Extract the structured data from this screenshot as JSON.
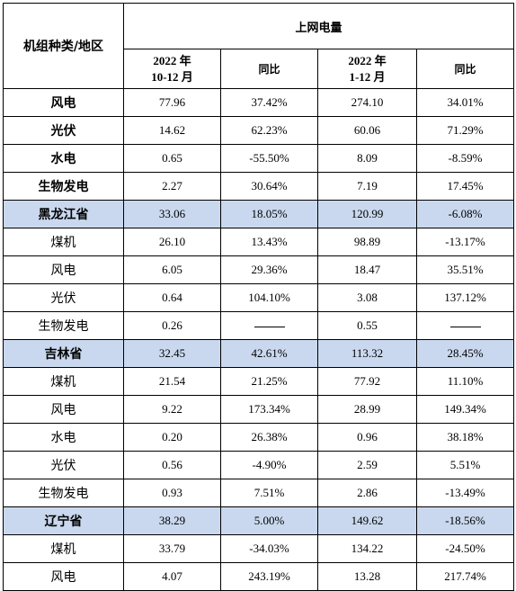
{
  "header": {
    "category": "机组种类/地区",
    "group": "上网电量",
    "col1": {
      "year": "2022 年",
      "period": "10-12 月"
    },
    "col2": "同比",
    "col3": {
      "year": "2022 年",
      "period": "1-12 月"
    },
    "col4": "同比"
  },
  "rows": [
    {
      "label": "风电",
      "v1": "77.96",
      "v2": "37.42%",
      "v3": "274.10",
      "v4": "34.01%",
      "kind": "bold"
    },
    {
      "label": "光伏",
      "v1": "14.62",
      "v2": "62.23%",
      "v3": "60.06",
      "v4": "71.29%",
      "kind": "bold"
    },
    {
      "label": "水电",
      "v1": "0.65",
      "v2": "-55.50%",
      "v3": "8.09",
      "v4": "-8.59%",
      "kind": "bold"
    },
    {
      "label": "生物发电",
      "v1": "2.27",
      "v2": "30.64%",
      "v3": "7.19",
      "v4": "17.45%",
      "kind": "bold"
    },
    {
      "label": "黑龙江省",
      "v1": "33.06",
      "v2": "18.05%",
      "v3": "120.99",
      "v4": "-6.08%",
      "kind": "region"
    },
    {
      "label": "煤机",
      "v1": "26.10",
      "v2": "13.43%",
      "v3": "98.89",
      "v4": "-13.17%",
      "kind": "normal"
    },
    {
      "label": "风电",
      "v1": "6.05",
      "v2": "29.36%",
      "v3": "18.47",
      "v4": "35.51%",
      "kind": "normal"
    },
    {
      "label": "光伏",
      "v1": "0.64",
      "v2": "104.10%",
      "v3": "3.08",
      "v4": "137.12%",
      "kind": "normal"
    },
    {
      "label": "生物发电",
      "v1": "0.26",
      "v2": "",
      "v3": "0.55",
      "v4": "",
      "kind": "normal"
    },
    {
      "label": "吉林省",
      "v1": "32.45",
      "v2": "42.61%",
      "v3": "113.32",
      "v4": "28.45%",
      "kind": "region"
    },
    {
      "label": "煤机",
      "v1": "21.54",
      "v2": "21.25%",
      "v3": "77.92",
      "v4": "11.10%",
      "kind": "normal"
    },
    {
      "label": "风电",
      "v1": "9.22",
      "v2": "173.34%",
      "v3": "28.99",
      "v4": "149.34%",
      "kind": "normal"
    },
    {
      "label": "水电",
      "v1": "0.20",
      "v2": "26.38%",
      "v3": "0.96",
      "v4": "38.18%",
      "kind": "normal"
    },
    {
      "label": "光伏",
      "v1": "0.56",
      "v2": "-4.90%",
      "v3": "2.59",
      "v4": "5.51%",
      "kind": "normal"
    },
    {
      "label": "生物发电",
      "v1": "0.93",
      "v2": "7.51%",
      "v3": "2.86",
      "v4": "-13.49%",
      "kind": "normal"
    },
    {
      "label": "辽宁省",
      "v1": "38.29",
      "v2": "5.00%",
      "v3": "149.62",
      "v4": "-18.56%",
      "kind": "region"
    },
    {
      "label": "煤机",
      "v1": "33.79",
      "v2": "-34.03%",
      "v3": "134.22",
      "v4": "-24.50%",
      "kind": "normal"
    },
    {
      "label": "风电",
      "v1": "4.07",
      "v2": "243.19%",
      "v3": "13.28",
      "v4": "217.74%",
      "kind": "normal"
    }
  ],
  "colors": {
    "region_band": "#c9d8ee",
    "border": "#000000"
  }
}
